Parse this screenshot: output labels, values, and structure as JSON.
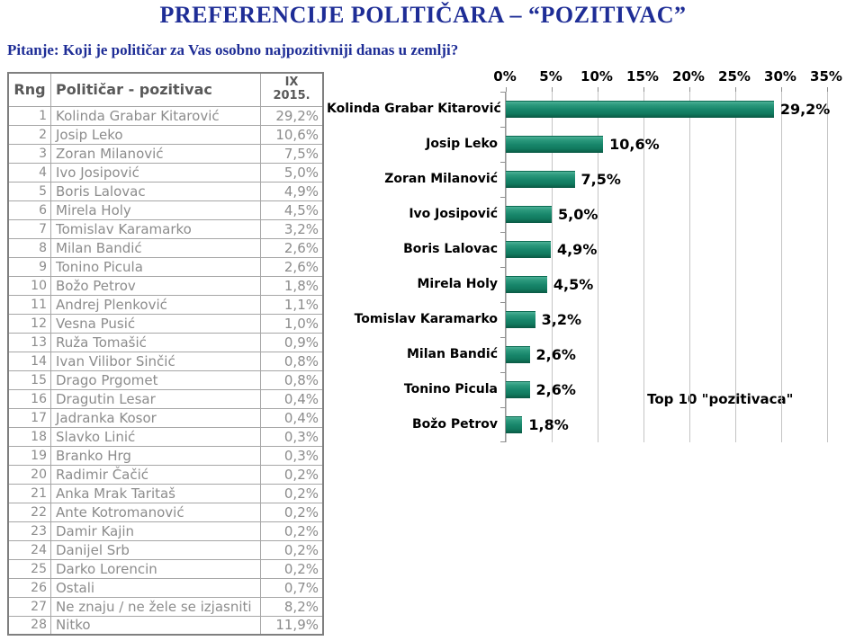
{
  "header": {
    "title": "PREFERENCIJE POLITIČARA – “POZITIVAC”",
    "question": "Pitanje: Koji je političar za Vas osobno najpozitivniji danas u zemlji?"
  },
  "colors": {
    "accent_blue": "#1e2d96",
    "bar_green": "#17856a",
    "gridline_gray": "#c4c4c4",
    "table_text_gray": "#8c8c8c",
    "table_header_gray": "#595959"
  },
  "table": {
    "headers": {
      "rank": "Rng",
      "name": "Političar - pozitivac",
      "period_line1": "IX",
      "period_line2": "2015."
    },
    "rows": [
      {
        "rank": "1",
        "name": "Kolinda Grabar Kitarović",
        "value": "29,2%"
      },
      {
        "rank": "2",
        "name": "Josip Leko",
        "value": "10,6%"
      },
      {
        "rank": "3",
        "name": "Zoran Milanović",
        "value": "7,5%"
      },
      {
        "rank": "4",
        "name": "Ivo Josipović",
        "value": "5,0%"
      },
      {
        "rank": "5",
        "name": "Boris Lalovac",
        "value": "4,9%"
      },
      {
        "rank": "6",
        "name": "Mirela Holy",
        "value": "4,5%"
      },
      {
        "rank": "7",
        "name": "Tomislav Karamarko",
        "value": "3,2%"
      },
      {
        "rank": "8",
        "name": "Milan Bandić",
        "value": "2,6%"
      },
      {
        "rank": "9",
        "name": "Tonino Picula",
        "value": "2,6%"
      },
      {
        "rank": "10",
        "name": "Božo Petrov",
        "value": "1,8%"
      },
      {
        "rank": "11",
        "name": "Andrej Plenković",
        "value": "1,1%"
      },
      {
        "rank": "12",
        "name": "Vesna Pusić",
        "value": "1,0%"
      },
      {
        "rank": "13",
        "name": "Ruža Tomašić",
        "value": "0,9%"
      },
      {
        "rank": "14",
        "name": "Ivan Vilibor Sinčić",
        "value": "0,8%"
      },
      {
        "rank": "15",
        "name": "Drago Prgomet",
        "value": "0,8%"
      },
      {
        "rank": "16",
        "name": "Dragutin Lesar",
        "value": "0,4%"
      },
      {
        "rank": "17",
        "name": "Jadranka Kosor",
        "value": "0,4%"
      },
      {
        "rank": "18",
        "name": "Slavko Linić",
        "value": "0,3%"
      },
      {
        "rank": "19",
        "name": "Branko Hrg",
        "value": "0,3%"
      },
      {
        "rank": "20",
        "name": "Radimir Čačić",
        "value": "0,2%"
      },
      {
        "rank": "21",
        "name": "Anka Mrak Taritaš",
        "value": "0,2%"
      },
      {
        "rank": "22",
        "name": "Ante Kotromanović",
        "value": "0,2%"
      },
      {
        "rank": "23",
        "name": "Damir Kajin",
        "value": "0,2%"
      },
      {
        "rank": "24",
        "name": "Danijel Srb",
        "value": "0,2%"
      },
      {
        "rank": "25",
        "name": "Darko Lorencin",
        "value": "0,2%"
      },
      {
        "rank": "26",
        "name": "Ostali",
        "value": "0,7%"
      },
      {
        "rank": "27",
        "name": "Ne znaju / ne žele se izjasniti",
        "value": "8,2%"
      },
      {
        "rank": "28",
        "name": "Nitko",
        "value": "11,9%"
      }
    ]
  },
  "chart_data": {
    "type": "bar",
    "orientation": "horizontal",
    "axis_position": "top",
    "grid": true,
    "xlim": [
      0,
      35
    ],
    "x_ticks": [
      "0%",
      "5%",
      "10%",
      "15%",
      "20%",
      "25%",
      "30%",
      "35%"
    ],
    "categories": [
      "Kolinda Grabar Kitarović",
      "Josip Leko",
      "Zoran Milanović",
      "Ivo Josipović",
      "Boris Lalovac",
      "Mirela Holy",
      "Tomislav Karamarko",
      "Milan Bandić",
      "Tonino Picula",
      "Božo Petrov"
    ],
    "values": [
      29.2,
      10.6,
      7.5,
      5.0,
      4.9,
      4.5,
      3.2,
      2.6,
      2.6,
      1.8
    ],
    "value_labels": [
      "29,2%",
      "10,6%",
      "7,5%",
      "5,0%",
      "4,9%",
      "4,5%",
      "3,2%",
      "2,6%",
      "2,6%",
      "1,8%"
    ],
    "annotation": "Top 10 \"pozitivaca\"",
    "bar_color": "#17856a"
  }
}
